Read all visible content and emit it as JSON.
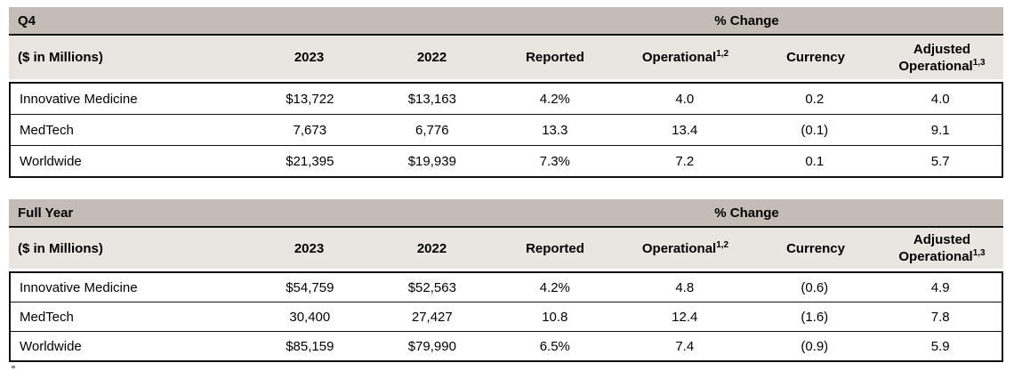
{
  "colors": {
    "band_dark": "#c4bdb5",
    "band_light": "#e9e5e0",
    "border": "#111111"
  },
  "tables": [
    {
      "period_label": "Q4",
      "change_label": "% Change",
      "unit_label": "($ in Millions)",
      "columns": [
        {
          "label": "2023"
        },
        {
          "label": "2022"
        },
        {
          "label": "Reported"
        },
        {
          "label": "Operational",
          "sup": "1,2"
        },
        {
          "label": "Currency"
        },
        {
          "label": "Adjusted",
          "label2": "Operational",
          "sup": "1,3"
        }
      ],
      "rows": [
        {
          "cells": [
            "Innovative Medicine",
            "$13,722",
            "$13,163",
            "4.2%",
            "4.0",
            "0.2",
            "4.0"
          ]
        },
        {
          "cells": [
            "MedTech",
            "7,673",
            "6,776",
            "13.3",
            "13.4",
            "(0.1)",
            "9.1"
          ]
        },
        {
          "cells": [
            "Worldwide",
            "$21,395",
            "$19,939",
            "7.3%",
            "7.2",
            "0.1",
            "5.7"
          ]
        }
      ]
    },
    {
      "period_label": "Full Year",
      "change_label": "% Change",
      "unit_label": "($ in Millions)",
      "columns": [
        {
          "label": "2023"
        },
        {
          "label": "2022"
        },
        {
          "label": "Reported"
        },
        {
          "label": "Operational",
          "sup": "1,2"
        },
        {
          "label": "Currency"
        },
        {
          "label": "Adjusted",
          "label2": "Operational",
          "sup": "1,3"
        }
      ],
      "rows": [
        {
          "cells": [
            "Innovative Medicine",
            "$54,759",
            "$52,563",
            "4.2%",
            "4.8",
            "(0.6)",
            "4.9"
          ]
        },
        {
          "cells": [
            "MedTech",
            "30,400",
            "27,427",
            "10.8",
            "12.4",
            "(1.6)",
            "7.8"
          ]
        },
        {
          "cells": [
            "Worldwide",
            "$85,159",
            "$79,990",
            "6.5%",
            "7.4",
            "(0.9)",
            "5.9"
          ]
        }
      ]
    }
  ]
}
